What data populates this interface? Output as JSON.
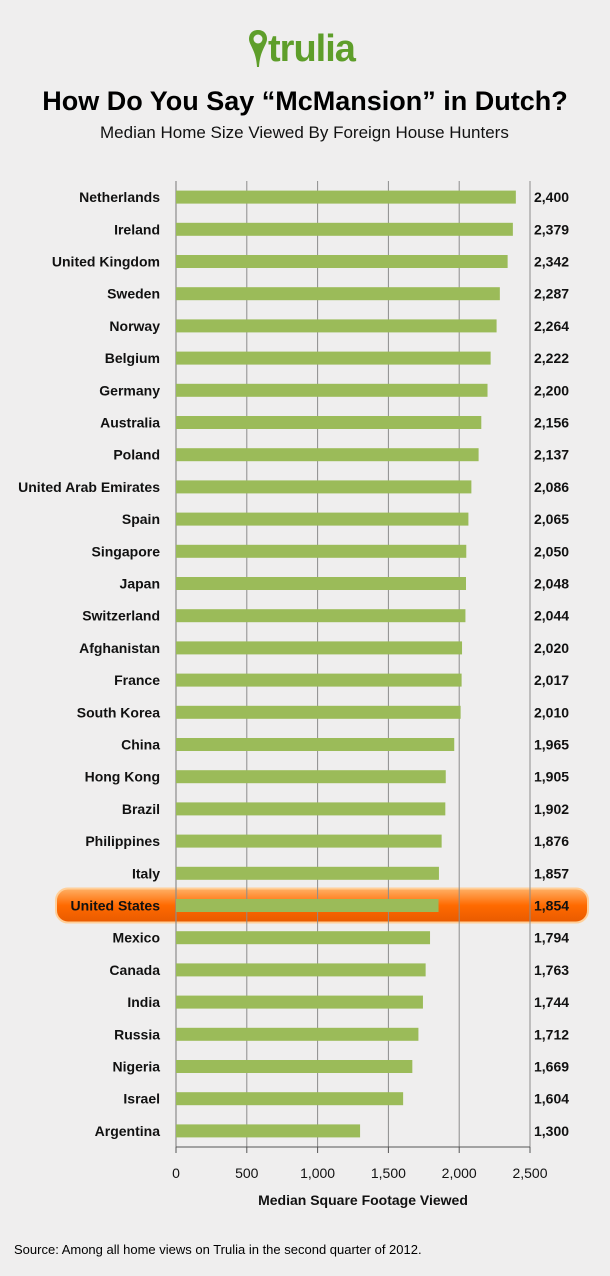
{
  "brand": {
    "name": "trulia",
    "logo_icon": "map-pin-icon",
    "color": "#5e9e2a"
  },
  "title": "How Do You Say “McMansion” in Dutch?",
  "subtitle": "Median Home Size Viewed By Foreign House Hunters",
  "footer": "Source: Among all home views on Trulia in the second quarter of 2012.",
  "colors": {
    "bar": "#9bbb59",
    "highlight": "#ff6a00",
    "grid": "#8c8c8c"
  },
  "chart_data": {
    "type": "bar",
    "orientation": "horizontal",
    "title": "How Do You Say “McMansion” in Dutch?",
    "xlabel": "Median Square Footage Viewed",
    "ylabel": "",
    "xlim": [
      0,
      2500
    ],
    "ticks": [
      0,
      500,
      1000,
      1500,
      2000,
      2500
    ],
    "tick_labels": [
      "0",
      "500",
      "1,000",
      "1,500",
      "2,000",
      "2,500"
    ],
    "grid": true,
    "highlight": "United States",
    "categories": [
      "Netherlands",
      "Ireland",
      "United Kingdom",
      "Sweden",
      "Norway",
      "Belgium",
      "Germany",
      "Australia",
      "Poland",
      "United Arab Emirates",
      "Spain",
      "Singapore",
      "Japan",
      "Switzerland",
      "Afghanistan",
      "France",
      "South Korea",
      "China",
      "Hong Kong",
      "Brazil",
      "Philippines",
      "Italy",
      "United States",
      "Mexico",
      "Canada",
      "India",
      "Russia",
      "Nigeria",
      "Israel",
      "Argentina"
    ],
    "values": [
      2400,
      2379,
      2342,
      2287,
      2264,
      2222,
      2200,
      2156,
      2137,
      2086,
      2065,
      2050,
      2048,
      2044,
      2020,
      2017,
      2010,
      1965,
      1905,
      1902,
      1876,
      1857,
      1854,
      1794,
      1763,
      1744,
      1712,
      1669,
      1604,
      1300
    ],
    "value_labels": [
      "2,400",
      "2,379",
      "2,342",
      "2,287",
      "2,264",
      "2,222",
      "2,200",
      "2,156",
      "2,137",
      "2,086",
      "2,065",
      "2,050",
      "2,048",
      "2,044",
      "2,020",
      "2,017",
      "2,010",
      "1,965",
      "1,905",
      "1,902",
      "1,876",
      "1,857",
      "1,854",
      "1,794",
      "1,763",
      "1,744",
      "1,712",
      "1,669",
      "1,604",
      "1,300"
    ]
  }
}
